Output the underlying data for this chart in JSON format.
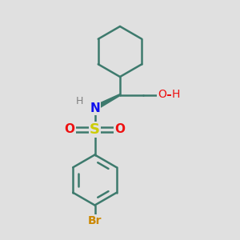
{
  "background_color": "#e0e0e0",
  "bond_color": "#3d7a6d",
  "N_color": "#1010ee",
  "S_color": "#cccc00",
  "O_color": "#ee1010",
  "Br_color": "#cc8800",
  "H_color": "#808080",
  "bond_width": 1.8,
  "figsize": [
    3.0,
    3.0
  ],
  "dpi": 100,
  "xlim": [
    0,
    10
  ],
  "ylim": [
    0,
    10
  ]
}
